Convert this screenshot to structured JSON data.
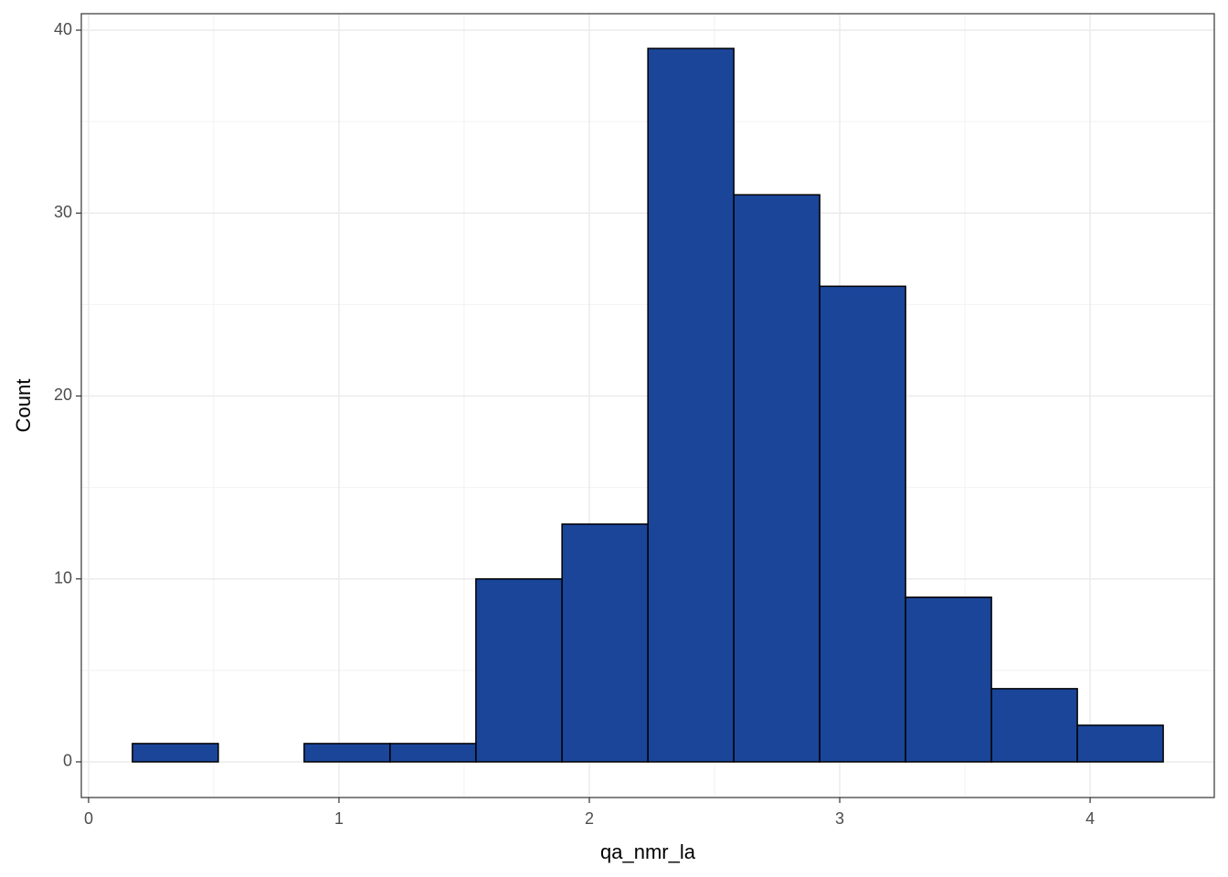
{
  "chart_data": {
    "type": "histogram",
    "x_label": "qa_nmr_la",
    "y_label": "Count",
    "bins": [
      0.175,
      0.518,
      0.861,
      1.204,
      1.547,
      1.891,
      2.234,
      2.577,
      2.92,
      3.263,
      3.606,
      3.949,
      4.292
    ],
    "values": [
      1,
      0,
      1,
      1,
      10,
      13,
      39,
      31,
      26,
      9,
      4,
      2
    ],
    "color": "#1a4599",
    "edge_color": "#000000",
    "xlim": [
      -0.029,
      4.496
    ],
    "ylim": [
      -1.95,
      40.9
    ],
    "xticks": [
      0,
      1,
      2,
      3,
      4
    ],
    "yticks": [
      0,
      10,
      20,
      30,
      40
    ],
    "minor_xticks": [
      0.5,
      1.5,
      2.5,
      3.5
    ],
    "minor_yticks": [
      5,
      15,
      25,
      35
    ],
    "grid": true
  }
}
